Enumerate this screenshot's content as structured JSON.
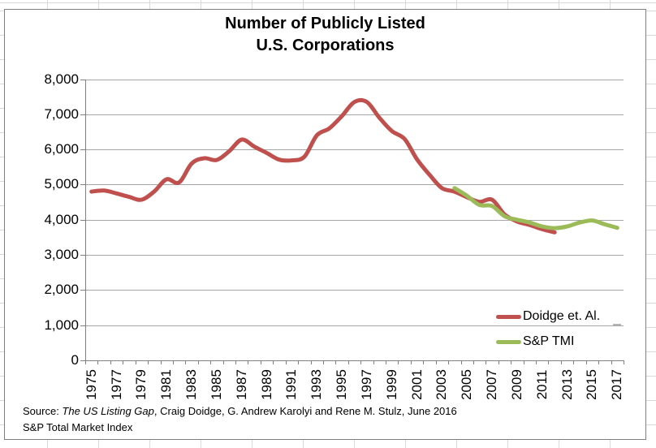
{
  "chart_data": {
    "type": "line",
    "title_lines": [
      "Number of Publicly Listed",
      "U.S. Corporations"
    ],
    "xlabel": "",
    "ylabel": "",
    "ylim": [
      0,
      8000
    ],
    "ytick_step": 1000,
    "ytick_labels": [
      "0",
      "1,000",
      "2,000",
      "3,000",
      "4,000",
      "5,000",
      "6,000",
      "7,000",
      "8,000"
    ],
    "xtick_labels": [
      "1975",
      "1977",
      "1979",
      "1981",
      "1983",
      "1985",
      "1987",
      "1989",
      "1991",
      "1993",
      "1995",
      "1997",
      "1999",
      "2001",
      "2003",
      "2005",
      "2007",
      "2009",
      "2011",
      "2013",
      "2015",
      "2017"
    ],
    "x_range": [
      1975,
      2017
    ],
    "grid": "horizontal",
    "smoothed": true,
    "legend_position": "inside-right-bottom",
    "series": [
      {
        "name": "Doidge et. Al.",
        "color": "#C0504D",
        "years": [
          1975,
          1976,
          1977,
          1978,
          1979,
          1980,
          1981,
          1982,
          1983,
          1984,
          1985,
          1986,
          1987,
          1988,
          1989,
          1990,
          1991,
          1992,
          1993,
          1994,
          1995,
          1996,
          1997,
          1998,
          1999,
          2000,
          2001,
          2002,
          2003,
          2004,
          2005,
          2006,
          2007,
          2008,
          2009,
          2010,
          2011,
          2012
        ],
        "values": [
          4800,
          4830,
          4750,
          4650,
          4570,
          4800,
          5150,
          5060,
          5600,
          5750,
          5700,
          5950,
          6280,
          6080,
          5900,
          5710,
          5690,
          5790,
          6400,
          6600,
          6950,
          7350,
          7350,
          6900,
          6520,
          6300,
          5720,
          5280,
          4900,
          4800,
          4640,
          4510,
          4570,
          4150,
          3950,
          3850,
          3730,
          3640
        ]
      },
      {
        "name": "S&P TMI",
        "color": "#9BBB59",
        "years": [
          2004,
          2005,
          2006,
          2007,
          2008,
          2009,
          2010,
          2011,
          2012,
          2013,
          2014,
          2015,
          2016,
          2017
        ],
        "values": [
          4900,
          4680,
          4420,
          4390,
          4100,
          4000,
          3920,
          3810,
          3760,
          3810,
          3920,
          3980,
          3870,
          3770
        ]
      }
    ],
    "colors": {
      "gridline": "#a6a6a6",
      "axis": "#808080",
      "chart_border": "#7f7f7f",
      "sheet_gridline": "#d9d9d9"
    }
  },
  "source": {
    "prefix": "Source: ",
    "italic": "The US Listing Gap",
    "suffix": ", Craig Doidge, G. Andrew Karolyi and Rene M. Stulz, June 2016",
    "line2": "S&P Total Market Index"
  }
}
